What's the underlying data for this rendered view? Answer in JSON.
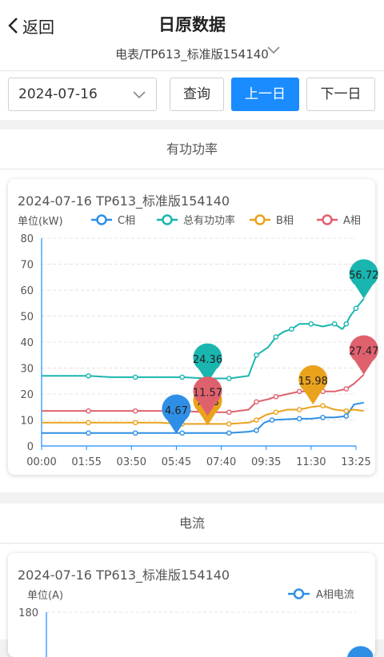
{
  "header": {
    "back_label": "返回",
    "title": "日原数据",
    "device": "电表/TP613_标准版154140"
  },
  "date_bar": {
    "date": "2024-07-16",
    "query_label": "查询",
    "prev_label": "上一日",
    "next_label": "下一日"
  },
  "section1": {
    "title": "有功功率"
  },
  "section2": {
    "title": "电流"
  },
  "colors": {
    "primary": "#1a8cff",
    "c_phase": "#2f8fe6",
    "total": "#19b6b0",
    "b_phase": "#eaa21c",
    "a_phase": "#e0616e"
  },
  "chart_data": [
    {
      "type": "line",
      "title": "2024-07-16  TP613_标准版154140",
      "ylabel": "单位(kW)",
      "xlabel": "",
      "ylim": [
        0,
        80
      ],
      "yticks": [
        "0",
        "10",
        "20",
        "30",
        "40",
        "50",
        "60",
        "70",
        "80"
      ],
      "xticks": [
        "00:00",
        "01:55",
        "03:50",
        "05:45",
        "07:40",
        "09:35",
        "11:30",
        "13:25"
      ],
      "legend_position": "top",
      "grid": "horizontal-dashed",
      "series": [
        {
          "name": "C相",
          "color": "#2f8fe6",
          "points": [
            [
              "00:00",
              5
            ],
            [
              "01:00",
              5
            ],
            [
              "02:00",
              5
            ],
            [
              "03:00",
              5
            ],
            [
              "04:00",
              5
            ],
            [
              "05:00",
              5
            ],
            [
              "06:00",
              5
            ],
            [
              "07:00",
              5
            ],
            [
              "08:00",
              5
            ],
            [
              "08:50",
              5.5
            ],
            [
              "09:10",
              6
            ],
            [
              "09:30",
              9
            ],
            [
              "09:50",
              10
            ],
            [
              "10:30",
              10.3
            ],
            [
              "11:00",
              10.5
            ],
            [
              "11:30",
              10.5
            ],
            [
              "12:00",
              11
            ],
            [
              "12:30",
              11
            ],
            [
              "13:00",
              11.5
            ],
            [
              "13:20",
              16
            ],
            [
              "13:45",
              16.68
            ]
          ],
          "marker": {
            "x": "05:45",
            "value": 4.67,
            "label": "4.67"
          }
        },
        {
          "name": "总有功功率",
          "color": "#19b6b0",
          "points": [
            [
              "00:00",
              27
            ],
            [
              "01:00",
              27
            ],
            [
              "02:00",
              27
            ],
            [
              "03:00",
              26.5
            ],
            [
              "04:00",
              26.5
            ],
            [
              "05:00",
              26.5
            ],
            [
              "06:00",
              26.5
            ],
            [
              "07:00",
              26
            ],
            [
              "08:00",
              26
            ],
            [
              "08:50",
              27
            ],
            [
              "09:10",
              35
            ],
            [
              "09:40",
              38
            ],
            [
              "10:00",
              42
            ],
            [
              "10:20",
              44
            ],
            [
              "10:40",
              45
            ],
            [
              "11:00",
              47
            ],
            [
              "11:30",
              47
            ],
            [
              "12:00",
              46
            ],
            [
              "12:30",
              47
            ],
            [
              "12:50",
              45
            ],
            [
              "13:00",
              47
            ],
            [
              "13:10",
              50
            ],
            [
              "13:25",
              53
            ],
            [
              "13:45",
              56.72
            ]
          ],
          "marker": {
            "x": "07:05",
            "value": 24.36,
            "label": "24.36"
          },
          "end_marker": {
            "x": "13:45",
            "value": 56.72,
            "label": "56.72"
          }
        },
        {
          "name": "B相",
          "color": "#eaa21c",
          "points": [
            [
              "00:00",
              9
            ],
            [
              "01:00",
              9
            ],
            [
              "02:00",
              9
            ],
            [
              "03:00",
              9
            ],
            [
              "04:00",
              9
            ],
            [
              "05:00",
              9
            ],
            [
              "06:00",
              8.5
            ],
            [
              "07:00",
              8.5
            ],
            [
              "08:00",
              8.5
            ],
            [
              "08:50",
              9
            ],
            [
              "09:10",
              10
            ],
            [
              "09:35",
              12
            ],
            [
              "10:00",
              13
            ],
            [
              "10:30",
              14
            ],
            [
              "11:00",
              14
            ],
            [
              "11:30",
              15
            ],
            [
              "12:00",
              15.5
            ],
            [
              "12:30",
              14
            ],
            [
              "13:00",
              13.5
            ],
            [
              "13:20",
              14
            ],
            [
              "13:45",
              13.5
            ]
          ],
          "marker": {
            "x": "07:05",
            "value": 7.93,
            "label": "7.93"
          },
          "mid_marker": {
            "x": "11:35",
            "value": 15.98,
            "label": "15.98"
          }
        },
        {
          "name": "A相",
          "color": "#e0616e",
          "points": [
            [
              "00:00",
              13.5
            ],
            [
              "01:00",
              13.5
            ],
            [
              "02:00",
              13.5
            ],
            [
              "03:00",
              13.5
            ],
            [
              "04:00",
              13.5
            ],
            [
              "05:00",
              13.5
            ],
            [
              "06:00",
              13.5
            ],
            [
              "07:00",
              13
            ],
            [
              "08:00",
              13
            ],
            [
              "08:50",
              14
            ],
            [
              "09:10",
              17
            ],
            [
              "09:40",
              18
            ],
            [
              "10:00",
              19
            ],
            [
              "10:30",
              20
            ],
            [
              "11:00",
              21
            ],
            [
              "11:30",
              21
            ],
            [
              "12:00",
              21
            ],
            [
              "12:30",
              21
            ],
            [
              "13:00",
              22
            ],
            [
              "13:20",
              24
            ],
            [
              "13:45",
              27.47
            ]
          ],
          "marker": {
            "x": "07:05",
            "value": 11.57,
            "label": "11.57"
          },
          "end_marker": {
            "x": "13:45",
            "value": 27.47,
            "label": "27.47"
          }
        }
      ]
    },
    {
      "type": "line",
      "title": "2024-07-16  TP613_标准版154140",
      "ylabel": "单位(A)",
      "yticks": [
        "180"
      ],
      "ylim": [
        0,
        180
      ],
      "legend_position": "top-right",
      "series": [
        {
          "name": "A相电流",
          "color": "#2f8fe6"
        }
      ]
    }
  ]
}
